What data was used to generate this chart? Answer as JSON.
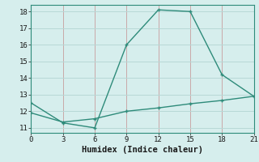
{
  "xlabel": "Humidex (Indice chaleur)",
  "line1_x": [
    0,
    3,
    6,
    9,
    12,
    15,
    18,
    21
  ],
  "line1_y": [
    12.5,
    11.3,
    11.0,
    16.0,
    18.1,
    18.0,
    14.2,
    12.9
  ],
  "line2_x": [
    0,
    3,
    6,
    9,
    12,
    15,
    18,
    21
  ],
  "line2_y": [
    11.9,
    11.35,
    11.55,
    12.0,
    12.2,
    12.45,
    12.65,
    12.9
  ],
  "line_color": "#2e8b7a",
  "bg_color": "#d6eeed",
  "hgrid_color": "#b8d8d6",
  "vgrid_color": "#c9a8a8",
  "xlim": [
    0,
    21
  ],
  "ylim": [
    10.7,
    18.4
  ],
  "xticks": [
    0,
    3,
    6,
    9,
    12,
    15,
    18,
    21
  ],
  "yticks": [
    11,
    12,
    13,
    14,
    15,
    16,
    17,
    18
  ],
  "markersize": 3.5,
  "linewidth": 1.0,
  "xlabel_fontsize": 7.5,
  "tick_fontsize": 6.5
}
